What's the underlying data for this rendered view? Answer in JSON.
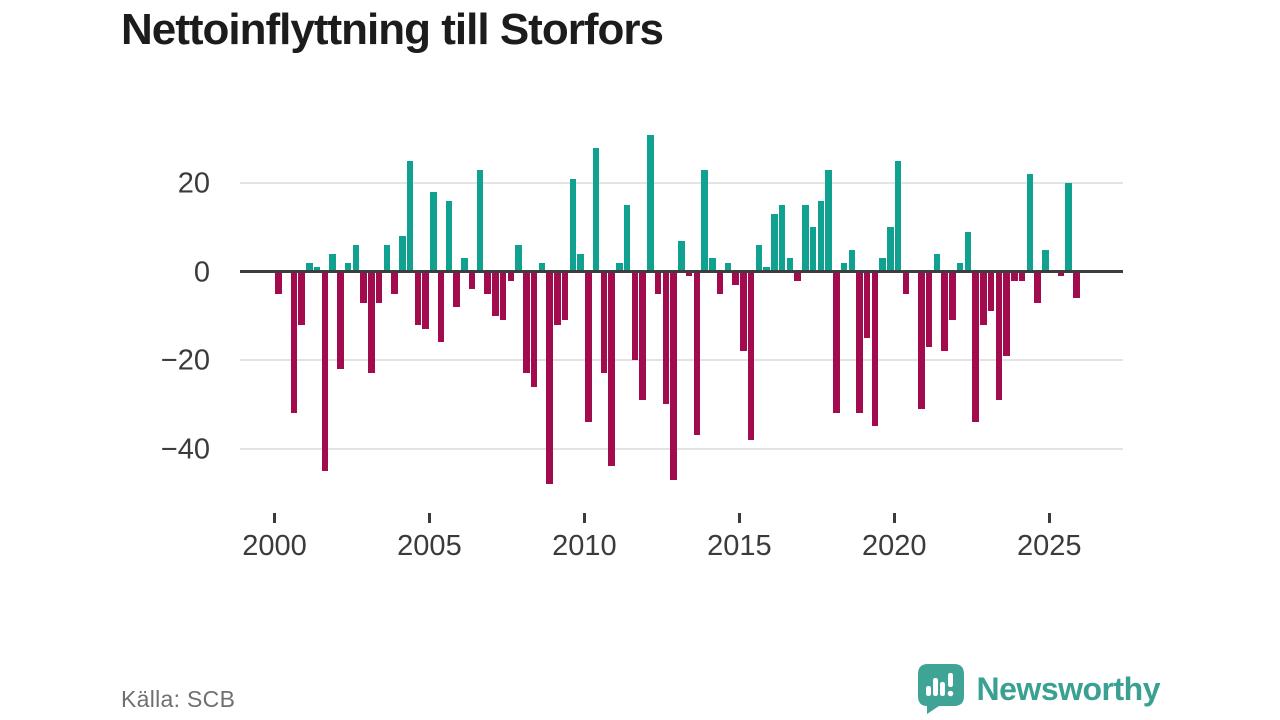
{
  "header": {
    "title": "Nettoinflyttning till Storfors"
  },
  "footer": {
    "source": "Källa: SCB",
    "brand": "Newsworthy"
  },
  "colors": {
    "positive_bar": "#10a191",
    "negative_bar": "#a20c4f",
    "zero_line": "#3d3d3d",
    "gridline": "#e3e3e3",
    "axis_text": "#3b3b3b",
    "title_text": "#1c1c1c",
    "source_text": "#707070",
    "brand_teal": "#3aa192"
  },
  "chart_data": {
    "type": "bar",
    "title": "Nettoinflyttning till Storfors",
    "xlabel": "",
    "ylabel": "",
    "frequency": "quarterly",
    "start_period": "2000 Q1",
    "end_period": "2025 Q4",
    "values": [
      -5,
      0,
      -32,
      -12,
      2,
      1,
      -45,
      4,
      -22,
      2,
      6,
      -7,
      -23,
      -7,
      6,
      -5,
      8,
      25,
      -12,
      -13,
      18,
      -16,
      16,
      -8,
      3,
      -4,
      23,
      -5,
      -10,
      -11,
      -2,
      6,
      -23,
      -26,
      2,
      -48,
      -12,
      -11,
      21,
      4,
      -34,
      28,
      -23,
      -44,
      2,
      15,
      -20,
      -29,
      31,
      -5,
      -30,
      -47,
      7,
      -1,
      -37,
      23,
      3,
      -5,
      2,
      -3,
      -18,
      -38,
      6,
      1,
      13,
      15,
      3,
      -2,
      15,
      10,
      16,
      23,
      -32,
      2,
      5,
      -32,
      -15,
      -35,
      3,
      10,
      25,
      -5,
      0,
      -31,
      -17,
      4,
      -18,
      -11,
      2,
      9,
      -34,
      -12,
      -9,
      -29,
      -19,
      -2,
      -2,
      22,
      -7,
      5,
      0,
      -1,
      20,
      -6
    ],
    "yticks": [
      20,
      0,
      -20,
      -40
    ],
    "ytick_labels": [
      "20",
      "0",
      "−20",
      "−40"
    ],
    "xticks": [
      2000,
      2005,
      2010,
      2015,
      2020,
      2025
    ],
    "xtick_labels": [
      "2000",
      "2005",
      "2010",
      "2015",
      "2020",
      "2025"
    ],
    "ylim": [
      -52,
      34
    ],
    "grid": "horizontal",
    "legend": "none",
    "positive_color": "#10a191",
    "negative_color": "#a20c4f"
  }
}
